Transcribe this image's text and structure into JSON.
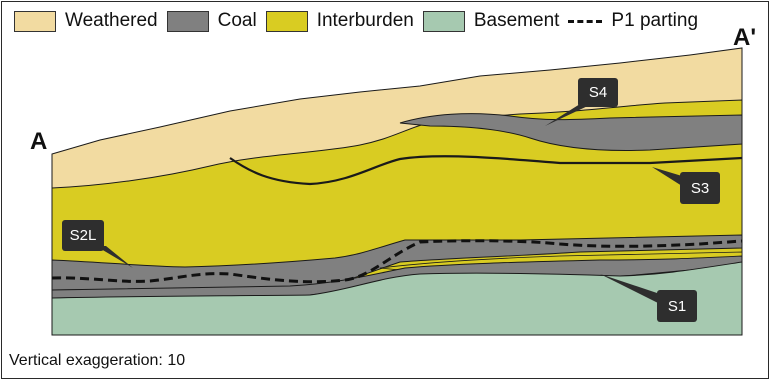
{
  "legend": {
    "items": [
      {
        "label": "Weathered",
        "color": "#f2dba1"
      },
      {
        "label": "Coal",
        "color": "#808080"
      },
      {
        "label": "Interburden",
        "color": "#d9cc22"
      },
      {
        "label": "Basement",
        "color": "#a6c9b0"
      }
    ],
    "parting_label": "P1 parting"
  },
  "section": {
    "start_label": "A",
    "end_label": "A'"
  },
  "seams": {
    "s4": "S4",
    "s3": "S3",
    "s2l": "S2L",
    "s1": "S1"
  },
  "note": "Vertical exaggeration: 10",
  "colors": {
    "weathered": "#f2dba1",
    "coal": "#808080",
    "interburden": "#d9cc22",
    "basement": "#a6c9b0",
    "callout": "#2e2e2e",
    "outline": "#1a1a1a"
  }
}
